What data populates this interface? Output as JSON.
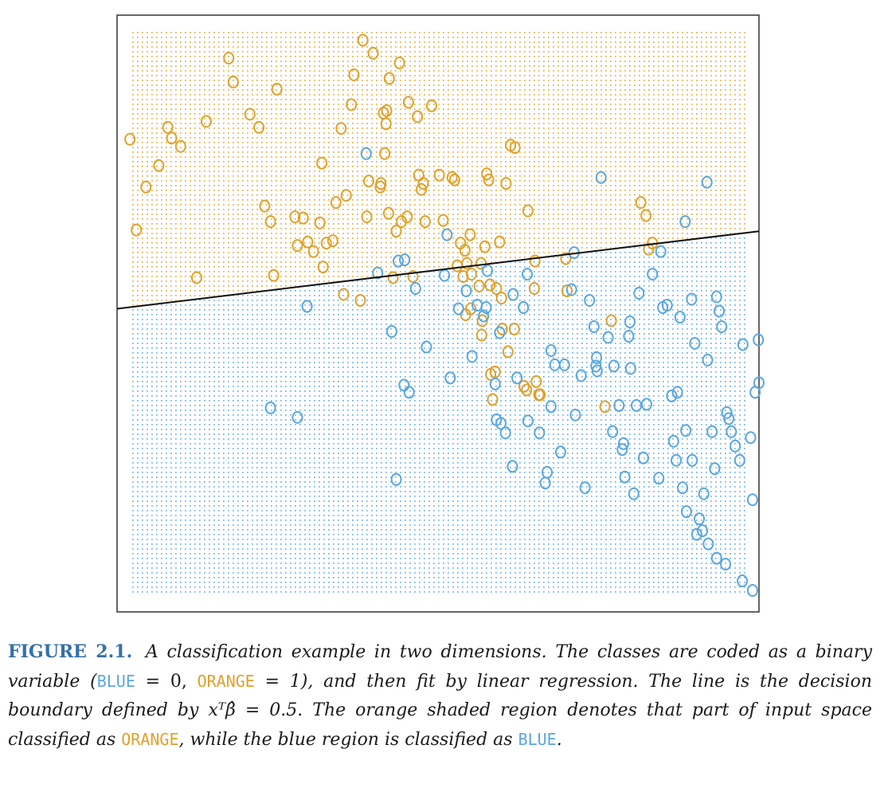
{
  "chart_data": {
    "type": "scatter",
    "title": "",
    "xlabel": "",
    "ylabel": "",
    "grid": false,
    "colors": {
      "blue": "#5aa6e0",
      "orange": "#e0a12a",
      "line": "#111111",
      "frame": "#333333"
    },
    "point_marker": "o",
    "xlim": [
      0,
      100
    ],
    "ylim": [
      0,
      100
    ],
    "decision_boundary": {
      "slope": 0.1299,
      "intercept": 50.8,
      "threshold_label": "0.5"
    },
    "series": [
      {
        "class": "ORANGE",
        "values": [
          [
            2.0,
            79.2
          ],
          [
            3.0,
            64.0
          ],
          [
            4.5,
            71.2
          ],
          [
            6.5,
            74.8
          ],
          [
            7.9,
            81.2
          ],
          [
            8.5,
            79.4
          ],
          [
            9.9,
            78.0
          ],
          [
            12.4,
            56.0
          ],
          [
            13.9,
            82.2
          ],
          [
            17.4,
            92.8
          ],
          [
            18.1,
            88.8
          ],
          [
            20.7,
            83.4
          ],
          [
            22.1,
            81.2
          ],
          [
            23.0,
            68.0
          ],
          [
            23.9,
            65.4
          ],
          [
            24.4,
            56.4
          ],
          [
            24.9,
            87.6
          ],
          [
            27.7,
            66.2
          ],
          [
            28.1,
            61.4
          ],
          [
            29.0,
            66.0
          ],
          [
            29.7,
            62.0
          ],
          [
            30.6,
            60.4
          ],
          [
            31.6,
            65.2
          ],
          [
            31.9,
            75.2
          ],
          [
            32.1,
            57.8
          ],
          [
            32.6,
            61.8
          ],
          [
            33.6,
            62.2
          ],
          [
            34.1,
            68.6
          ],
          [
            34.9,
            81.0
          ],
          [
            35.3,
            53.2
          ],
          [
            35.7,
            69.8
          ],
          [
            36.5,
            85.0
          ],
          [
            36.9,
            90.0
          ],
          [
            37.9,
            52.2
          ],
          [
            38.3,
            95.8
          ],
          [
            38.9,
            66.2
          ],
          [
            39.2,
            72.2
          ],
          [
            39.9,
            93.6
          ],
          [
            41.0,
            71.2
          ],
          [
            41.1,
            71.8
          ],
          [
            41.5,
            83.6
          ],
          [
            41.7,
            76.8
          ],
          [
            41.9,
            81.8
          ],
          [
            42.0,
            84.0
          ],
          [
            42.3,
            66.8
          ],
          [
            42.4,
            89.4
          ],
          [
            43.0,
            56.0
          ],
          [
            43.5,
            63.8
          ],
          [
            44.0,
            92.0
          ],
          [
            44.3,
            65.4
          ],
          [
            45.2,
            66.2
          ],
          [
            45.4,
            85.4
          ],
          [
            46.1,
            56.2
          ],
          [
            46.8,
            83.0
          ],
          [
            47.0,
            73.2
          ],
          [
            47.4,
            70.8
          ],
          [
            47.7,
            71.8
          ],
          [
            48.0,
            65.4
          ],
          [
            49.0,
            84.8
          ],
          [
            50.2,
            73.2
          ],
          [
            50.8,
            65.6
          ],
          [
            52.2,
            72.8
          ],
          [
            52.6,
            72.4
          ],
          [
            53.0,
            58.0
          ],
          [
            53.5,
            61.8
          ],
          [
            53.9,
            56.2
          ],
          [
            54.2,
            60.6
          ],
          [
            54.3,
            49.8
          ],
          [
            54.5,
            58.4
          ],
          [
            55.0,
            63.2
          ],
          [
            55.1,
            50.8
          ],
          [
            55.2,
            56.6
          ],
          [
            56.4,
            54.6
          ],
          [
            56.7,
            58.4
          ],
          [
            56.8,
            46.4
          ],
          [
            56.9,
            48.8
          ],
          [
            57.3,
            61.2
          ],
          [
            57.6,
            73.4
          ],
          [
            57.9,
            72.4
          ],
          [
            58.1,
            54.8
          ],
          [
            58.2,
            39.8
          ],
          [
            58.5,
            35.6
          ],
          [
            58.9,
            40.2
          ],
          [
            59.1,
            54.2
          ],
          [
            59.6,
            62.0
          ],
          [
            59.9,
            52.6
          ],
          [
            60.0,
            47.4
          ],
          [
            60.6,
            71.8
          ],
          [
            60.9,
            43.6
          ],
          [
            61.3,
            78.2
          ],
          [
            61.9,
            47.4
          ],
          [
            62.0,
            77.8
          ],
          [
            63.4,
            37.8
          ],
          [
            63.8,
            37.2
          ],
          [
            64.0,
            67.2
          ],
          [
            65.0,
            54.2
          ],
          [
            65.1,
            58.8
          ],
          [
            65.3,
            38.6
          ],
          [
            65.7,
            36.4
          ],
          [
            65.9,
            36.4
          ],
          [
            69.9,
            59.2
          ],
          [
            70.1,
            53.8
          ],
          [
            76.0,
            34.4
          ],
          [
            77.0,
            48.8
          ],
          [
            81.6,
            68.6
          ],
          [
            82.4,
            66.4
          ],
          [
            82.8,
            60.8
          ],
          [
            83.4,
            61.8
          ]
        ]
      },
      {
        "class": "BLUE",
        "values": [
          [
            29.6,
            51.2
          ],
          [
            23.9,
            34.2
          ],
          [
            28.1,
            32.6
          ],
          [
            38.8,
            76.8
          ],
          [
            40.6,
            56.8
          ],
          [
            42.8,
            47.0
          ],
          [
            43.5,
            22.2
          ],
          [
            44.7,
            38.0
          ],
          [
            44.8,
            59.0
          ],
          [
            45.5,
            36.8
          ],
          [
            46.5,
            54.2
          ],
          [
            48.2,
            44.4
          ],
          [
            51.4,
            63.2
          ],
          [
            51.9,
            39.2
          ],
          [
            53.2,
            50.8
          ],
          [
            56.1,
            51.4
          ],
          [
            57.1,
            49.6
          ],
          [
            57.5,
            51.0
          ],
          [
            58.9,
            38.2
          ],
          [
            59.1,
            32.2
          ],
          [
            59.8,
            31.6
          ],
          [
            60.5,
            30.0
          ],
          [
            61.7,
            53.2
          ],
          [
            62.3,
            39.2
          ],
          [
            63.3,
            51.0
          ],
          [
            64.0,
            32.0
          ],
          [
            65.8,
            30.0
          ],
          [
            67.0,
            23.4
          ],
          [
            67.6,
            34.4
          ],
          [
            68.2,
            41.4
          ],
          [
            69.7,
            41.4
          ],
          [
            70.8,
            54.0
          ],
          [
            71.2,
            60.2
          ],
          [
            72.3,
            39.6
          ],
          [
            74.3,
            47.8
          ],
          [
            74.6,
            41.2
          ],
          [
            74.7,
            42.6
          ],
          [
            75.4,
            72.8
          ],
          [
            76.5,
            46.0
          ],
          [
            77.2,
            30.2
          ],
          [
            77.4,
            41.2
          ],
          [
            78.2,
            34.6
          ],
          [
            78.7,
            27.2
          ],
          [
            79.1,
            22.6
          ],
          [
            79.7,
            46.2
          ],
          [
            79.9,
            48.6
          ],
          [
            80.0,
            40.8
          ],
          [
            80.9,
            34.6
          ],
          [
            81.3,
            53.4
          ],
          [
            82.0,
            25.8
          ],
          [
            82.5,
            34.8
          ],
          [
            83.4,
            56.6
          ],
          [
            84.7,
            60.4
          ],
          [
            85.0,
            51.0
          ],
          [
            85.7,
            51.4
          ],
          [
            86.4,
            36.2
          ],
          [
            87.1,
            25.4
          ],
          [
            87.3,
            36.8
          ],
          [
            87.7,
            49.4
          ],
          [
            88.5,
            65.4
          ],
          [
            88.6,
            30.4
          ],
          [
            89.5,
            52.4
          ],
          [
            89.6,
            25.4
          ],
          [
            90.0,
            45.0
          ],
          [
            90.7,
            15.6
          ],
          [
            91.4,
            19.8
          ],
          [
            91.9,
            72.0
          ],
          [
            92.0,
            42.2
          ],
          [
            92.7,
            30.2
          ],
          [
            93.1,
            24.0
          ],
          [
            93.4,
            52.8
          ],
          [
            93.8,
            50.4
          ],
          [
            94.2,
            47.8
          ],
          [
            95.0,
            33.4
          ],
          [
            95.3,
            32.4
          ],
          [
            95.7,
            30.2
          ],
          [
            96.3,
            27.8
          ],
          [
            97.0,
            25.4
          ],
          [
            97.5,
            44.8
          ],
          [
            98.7,
            29.2
          ],
          [
            99.0,
            18.8
          ],
          [
            99.4,
            36.8
          ],
          [
            99.9,
            45.6
          ],
          [
            100.0,
            38.4
          ],
          [
            73.6,
            52.2
          ],
          [
            55.3,
            42.8
          ],
          [
            57.7,
            57.2
          ],
          [
            61.6,
            24.4
          ],
          [
            66.7,
            21.6
          ],
          [
            69.1,
            26.8
          ],
          [
            72.9,
            20.8
          ],
          [
            74.8,
            40.4
          ],
          [
            78.9,
            28.2
          ],
          [
            80.5,
            19.8
          ],
          [
            84.4,
            22.4
          ],
          [
            86.7,
            28.6
          ],
          [
            88.7,
            16.8
          ],
          [
            90.3,
            13.0
          ],
          [
            92.1,
            11.4
          ],
          [
            94.8,
            8.0
          ],
          [
            97.4,
            5.2
          ],
          [
            99.0,
            3.6
          ],
          [
            43.8,
            58.8
          ],
          [
            51.0,
            56.4
          ],
          [
            54.4,
            53.8
          ],
          [
            59.6,
            46.8
          ],
          [
            63.9,
            56.6
          ],
          [
            67.6,
            43.8
          ],
          [
            71.4,
            33.0
          ],
          [
            88.1,
            20.8
          ],
          [
            91.2,
            13.6
          ],
          [
            93.4,
            9.0
          ]
        ]
      }
    ]
  },
  "caption": {
    "figure_label": "FIGURE 2.1.",
    "text_1": " A classification example in two dimensions. The classes are coded as a binary variable (",
    "blue_token": "BLUE",
    "text_2": " = 0, ",
    "orange_token": "ORANGE",
    "text_3": " = 1), and then fit by linear regression. The line is the decision boundary defined by ",
    "formula": "xᵀβ̂ = 0.5",
    "text_4": ". The orange shaded region denotes that part of input space classified as ",
    "orange_token_2": "ORANGE",
    "text_5": ", while the blue region is classified as ",
    "blue_token_2": "BLUE",
    "text_6": "."
  }
}
